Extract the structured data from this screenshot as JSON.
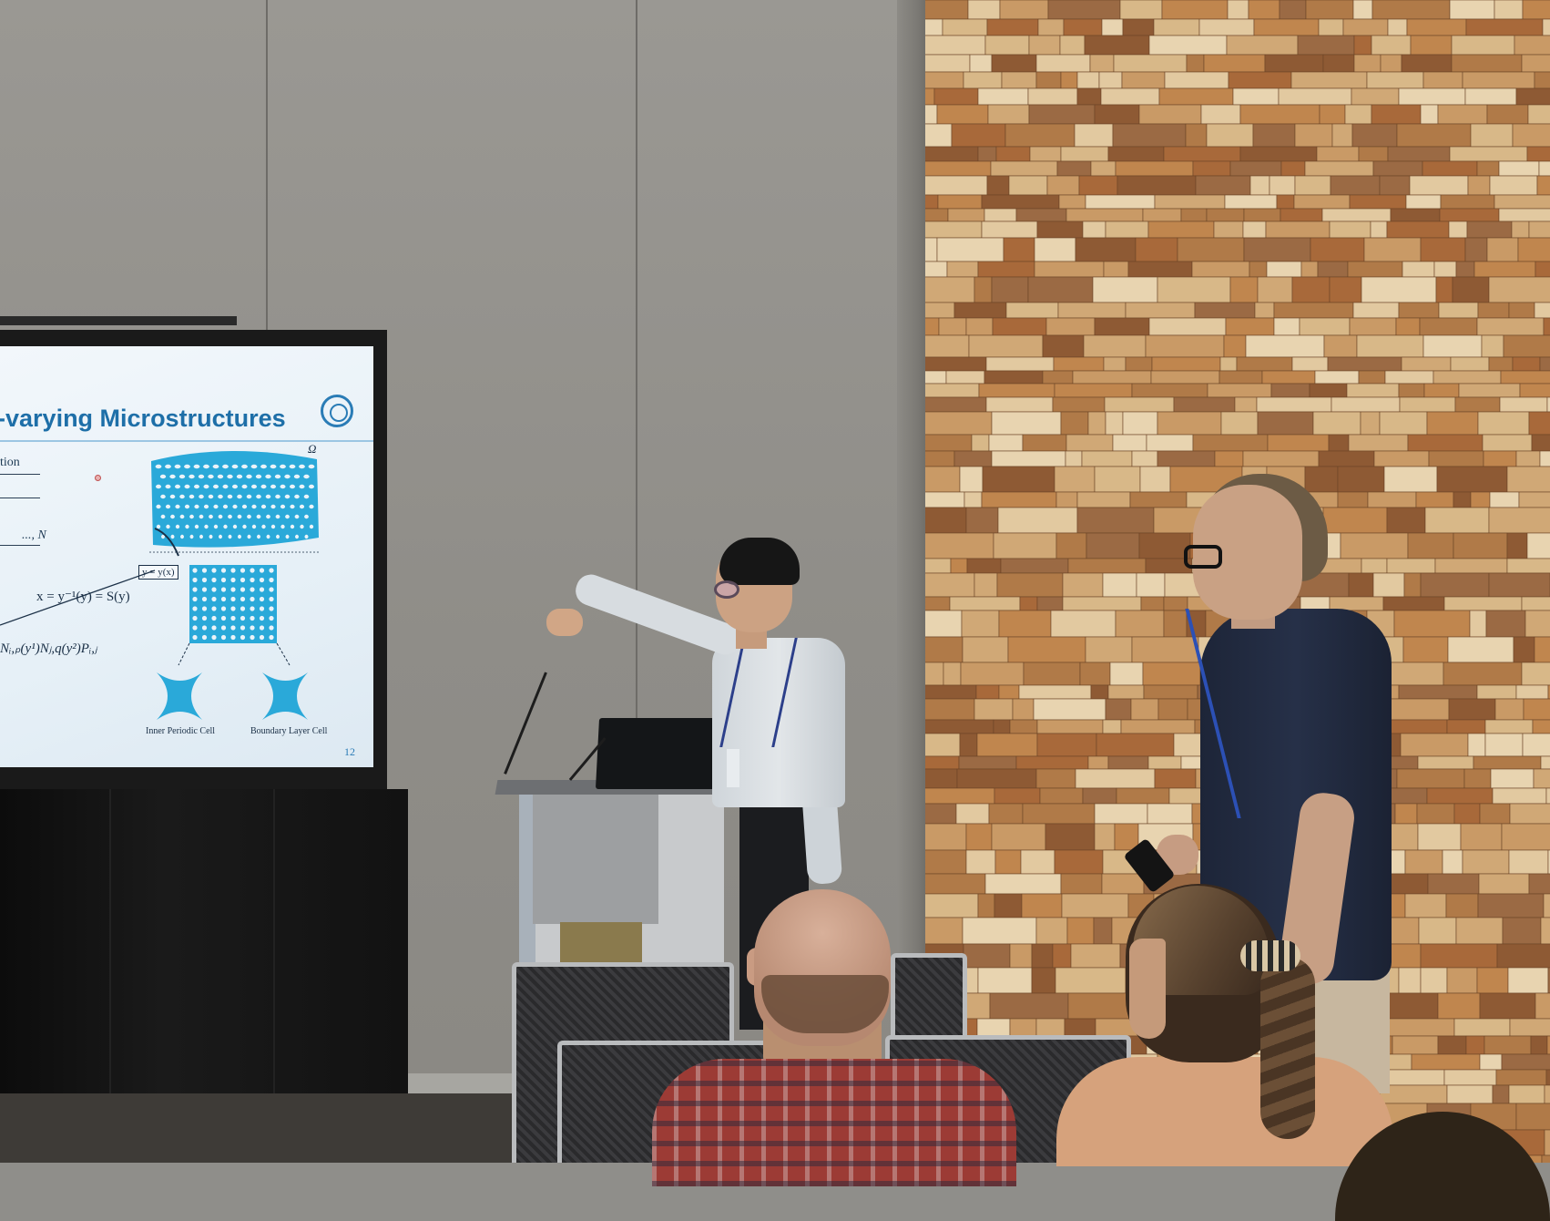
{
  "slide": {
    "title": "y-varying Microstructures",
    "word_fragment": "tion",
    "index_range": "..., N",
    "inverse_map": "x = y⁻¹(y) = S(y)",
    "mapping_box": "y = y(x)",
    "shape_sum": "Nᵢ,ₚ(y¹)Nⱼ,q(y²)Pᵢ,ⱼ",
    "domain_symbol": "Ω",
    "caption_inner": "Inner Periodic Cell",
    "caption_boundary": "Boundary Layer Cell",
    "page_number": "12"
  },
  "colors": {
    "slide_accent": "#1e6fa8",
    "lattice": "#29a8d8",
    "wood_wall": "#b7895a",
    "wall_grey": "#938f8a"
  },
  "icons": {
    "slide_logo": "institution-seal-icon",
    "laser_pointer": "laser-dot-icon"
  }
}
